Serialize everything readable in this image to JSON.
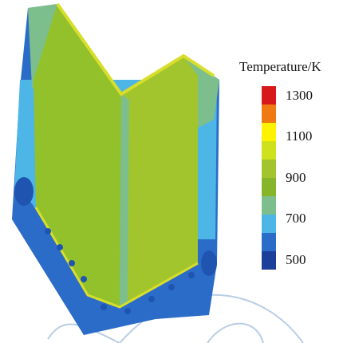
{
  "legend": {
    "title": "Temperature/K",
    "labels": [
      "1300",
      "1100",
      "900",
      "700",
      "500"
    ]
  }
}
